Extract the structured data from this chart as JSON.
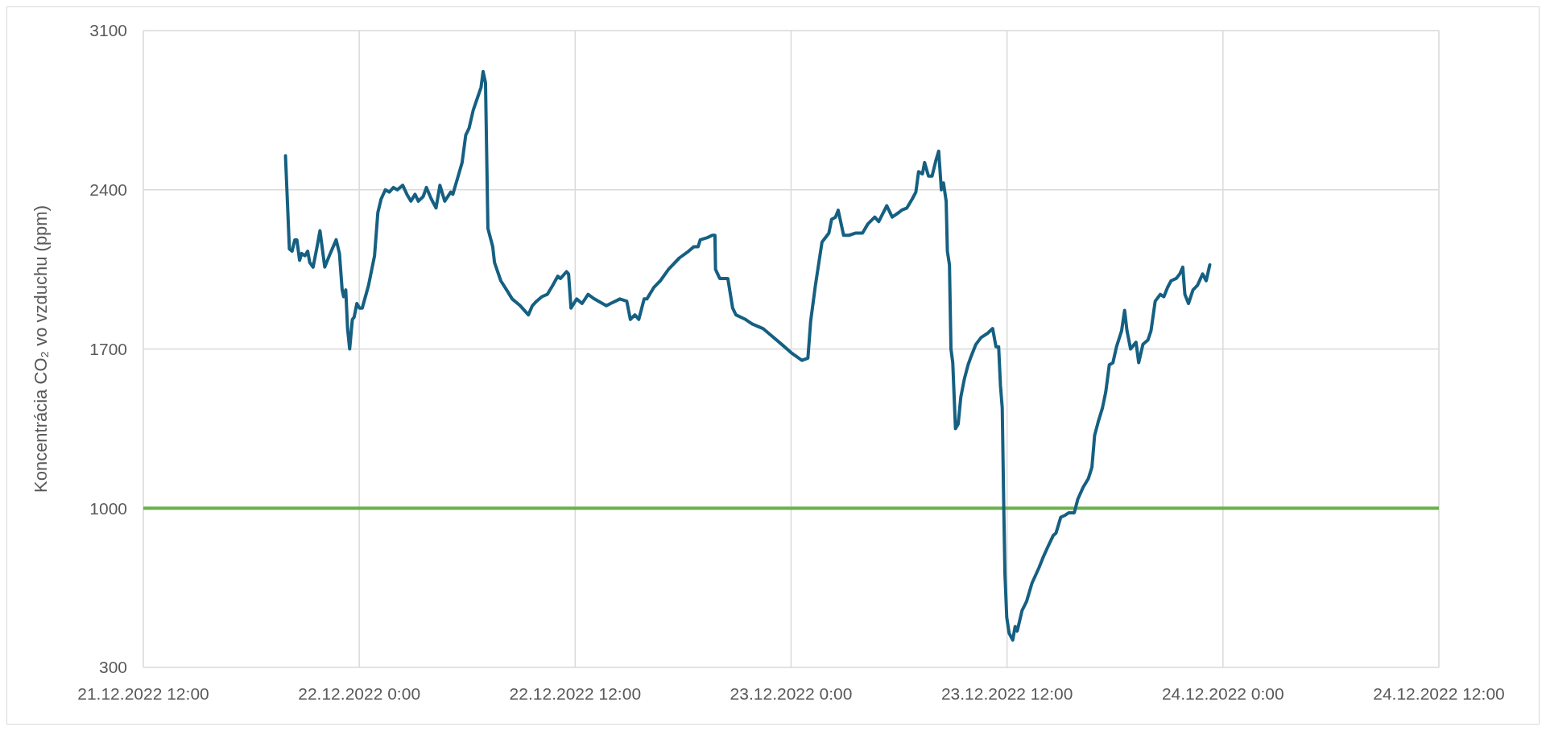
{
  "chart_data": {
    "type": "line",
    "ylabel": "Koncentrácia CO₂ vo vzduchu (ppm)",
    "xlim": [
      "2022-12-21T12:00",
      "2022-12-24T12:00"
    ],
    "xticks": [
      {
        "value": "2022-12-21T12:00",
        "label": "21.12.2022 12:00"
      },
      {
        "value": "2022-12-22T00:00",
        "label": "22.12.2022 0:00"
      },
      {
        "value": "2022-12-22T12:00",
        "label": "22.12.2022 12:00"
      },
      {
        "value": "2022-12-23T00:00",
        "label": "23.12.2022 0:00"
      },
      {
        "value": "2022-12-23T12:00",
        "label": "23.12.2022 12:00"
      },
      {
        "value": "2022-12-24T00:00",
        "label": "24.12.2022 0:00"
      },
      {
        "value": "2022-12-24T12:00",
        "label": "24.12.2022 12:00"
      }
    ],
    "ylim": [
      300,
      3100
    ],
    "yticks": [
      300,
      1000,
      1700,
      2400,
      3100
    ],
    "grid": true,
    "line_style": "solid",
    "ref_lines": [
      {
        "axis": "y",
        "value": 1000,
        "color": "#6ab04c"
      }
    ],
    "series": [
      {
        "color": "#156082",
        "x": [
          "2022-12-21T19:54",
          "2022-12-21T20:07",
          "2022-12-21T20:16",
          "2022-12-21T20:25",
          "2022-12-21T20:32",
          "2022-12-21T20:41",
          "2022-12-21T20:48",
          "2022-12-21T20:59",
          "2022-12-21T21:08",
          "2022-12-21T21:15",
          "2022-12-21T21:26",
          "2022-12-21T21:38",
          "2022-12-21T21:49",
          "2022-12-21T21:56",
          "2022-12-21T22:05",
          "2022-12-21T22:20",
          "2022-12-21T22:43",
          "2022-12-21T22:54",
          "2022-12-21T23:03",
          "2022-12-21T23:08",
          "2022-12-21T23:15",
          "2022-12-21T23:21",
          "2022-12-21T23:28",
          "2022-12-21T23:37",
          "2022-12-21T23:43",
          "2022-12-21T23:52",
          "2022-12-22T00:01",
          "2022-12-22T00:10",
          "2022-12-22T00:31",
          "2022-12-22T00:51",
          "2022-12-22T01:02",
          "2022-12-22T01:13",
          "2022-12-22T01:27",
          "2022-12-22T01:40",
          "2022-12-22T01:54",
          "2022-12-22T02:07",
          "2022-12-22T02:25",
          "2022-12-22T02:39",
          "2022-12-22T02:52",
          "2022-12-22T03:06",
          "2022-12-22T03:17",
          "2022-12-22T03:33",
          "2022-12-22T03:44",
          "2022-12-22T04:00",
          "2022-12-22T04:16",
          "2022-12-22T04:29",
          "2022-12-22T04:45",
          "2022-12-22T05:05",
          "2022-12-22T05:12",
          "2022-12-22T05:32",
          "2022-12-22T05:43",
          "2022-12-22T05:55",
          "2022-12-22T06:06",
          "2022-12-22T06:20",
          "2022-12-22T06:33",
          "2022-12-22T06:46",
          "2022-12-22T06:53",
          "2022-12-22T07:01",
          "2022-12-22T07:09",
          "2022-12-22T07:25",
          "2022-12-22T07:31",
          "2022-12-22T07:52",
          "2022-12-22T08:16",
          "2022-12-22T08:30",
          "2022-12-22T08:57",
          "2022-12-22T09:24",
          "2022-12-22T09:37",
          "2022-12-22T09:51",
          "2022-12-22T10:09",
          "2022-12-22T10:27",
          "2022-12-22T10:45",
          "2022-12-22T11:02",
          "2022-12-22T11:11",
          "2022-12-22T11:31",
          "2022-12-22T11:38",
          "2022-12-22T11:46",
          "2022-12-22T12:05",
          "2022-12-22T12:23",
          "2022-12-22T12:43",
          "2022-12-22T13:04",
          "2022-12-22T13:44",
          "2022-12-22T13:58",
          "2022-12-22T14:29",
          "2022-12-22T14:52",
          "2022-12-22T15:04",
          "2022-12-22T15:19",
          "2022-12-22T15:32",
          "2022-12-22T15:50",
          "2022-12-22T15:59",
          "2022-12-22T16:22",
          "2022-12-22T16:44",
          "2022-12-22T17:11",
          "2022-12-22T17:47",
          "2022-12-22T18:18",
          "2022-12-22T18:36",
          "2022-12-22T18:50",
          "2022-12-22T18:57",
          "2022-12-22T19:21",
          "2022-12-22T19:37",
          "2022-12-22T19:46",
          "2022-12-22T19:48",
          "2022-12-22T20:02",
          "2022-12-22T20:29",
          "2022-12-22T20:45",
          "2022-12-22T20:56",
          "2022-12-22T21:28",
          "2022-12-22T21:50",
          "2022-12-22T22:26",
          "2022-12-22T22:53",
          "2022-12-22T23:29",
          "2022-12-23T00:04",
          "2022-12-23T00:36",
          "2022-12-23T00:56",
          "2022-12-23T01:05",
          "2022-12-23T01:21",
          "2022-12-23T01:43",
          "2022-12-23T02:06",
          "2022-12-23T02:15",
          "2022-12-23T02:28",
          "2022-12-23T02:37",
          "2022-12-23T02:55",
          "2022-12-23T03:13",
          "2022-12-23T03:36",
          "2022-12-23T03:58",
          "2022-12-23T04:16",
          "2022-12-23T04:39",
          "2022-12-23T04:52",
          "2022-12-23T05:19",
          "2022-12-23T05:37",
          "2022-12-23T05:59",
          "2022-12-23T06:08",
          "2022-12-23T06:26",
          "2022-12-23T06:44",
          "2022-12-23T06:56",
          "2022-12-23T07:05",
          "2022-12-23T07:18",
          "2022-12-23T07:25",
          "2022-12-23T07:38",
          "2022-12-23T07:50",
          "2022-12-23T08:03",
          "2022-12-23T08:12",
          "2022-12-23T08:21",
          "2022-12-23T08:28",
          "2022-12-23T08:37",
          "2022-12-23T08:41",
          "2022-12-23T08:48",
          "2022-12-23T08:53",
          "2022-12-23T08:59",
          "2022-12-23T09:08",
          "2022-12-23T09:17",
          "2022-12-23T09:26",
          "2022-12-23T09:38",
          "2022-12-23T09:50",
          "2022-12-23T09:58",
          "2022-12-23T10:16",
          "2022-12-23T10:33",
          "2022-12-23T10:56",
          "2022-12-23T11:12",
          "2022-12-23T11:23",
          "2022-12-23T11:32",
          "2022-12-23T11:38",
          "2022-12-23T11:44",
          "2022-12-23T11:49",
          "2022-12-23T11:53",
          "2022-12-23T11:59",
          "2022-12-23T12:07",
          "2022-12-23T12:19",
          "2022-12-23T12:27",
          "2022-12-23T12:34",
          "2022-12-23T12:50",
          "2022-12-23T13:05",
          "2022-12-23T13:23",
          "2022-12-23T13:47",
          "2022-12-23T13:59",
          "2022-12-23T14:16",
          "2022-12-23T14:34",
          "2022-12-23T14:43",
          "2022-12-23T14:59",
          "2022-12-23T15:15",
          "2022-12-23T15:26",
          "2022-12-23T15:44",
          "2022-12-23T15:56",
          "2022-12-23T16:13",
          "2022-12-23T16:31",
          "2022-12-23T16:43",
          "2022-12-23T16:52",
          "2022-12-23T17:04",
          "2022-12-23T17:18",
          "2022-12-23T17:29",
          "2022-12-23T17:41",
          "2022-12-23T17:53",
          "2022-12-23T18:05",
          "2022-12-23T18:22",
          "2022-12-23T18:32",
          "2022-12-23T18:40",
          "2022-12-23T18:52",
          "2022-12-23T19:10",
          "2022-12-23T19:19",
          "2022-12-23T19:33",
          "2022-12-23T19:50",
          "2022-12-23T20:00",
          "2022-12-23T20:14",
          "2022-12-23T20:31",
          "2022-12-23T20:43",
          "2022-12-23T20:55",
          "2022-12-23T21:07",
          "2022-12-23T21:24",
          "2022-12-23T21:36",
          "2022-12-23T21:46",
          "2022-12-23T21:53",
          "2022-12-23T22:05",
          "2022-12-23T22:20",
          "2022-12-23T22:35",
          "2022-12-23T22:52",
          "2022-12-23T23:04",
          "2022-12-23T23:16"
        ],
        "values": [
          2550,
          2140,
          2130,
          2180,
          2180,
          2090,
          2120,
          2110,
          2130,
          2080,
          2060,
          2140,
          2220,
          2150,
          2060,
          2110,
          2180,
          2120,
          1960,
          1930,
          1960,
          1790,
          1700,
          1830,
          1840,
          1900,
          1880,
          1880,
          1980,
          2110,
          2300,
          2360,
          2400,
          2390,
          2410,
          2400,
          2420,
          2380,
          2350,
          2380,
          2350,
          2370,
          2410,
          2360,
          2320,
          2420,
          2350,
          2390,
          2380,
          2470,
          2520,
          2640,
          2670,
          2750,
          2800,
          2850,
          2920,
          2870,
          2230,
          2150,
          2080,
          2000,
          1950,
          1920,
          1890,
          1850,
          1890,
          1910,
          1930,
          1940,
          1980,
          2020,
          2010,
          2040,
          2030,
          1880,
          1920,
          1900,
          1940,
          1920,
          1890,
          1900,
          1920,
          1910,
          1830,
          1850,
          1830,
          1920,
          1920,
          1970,
          2000,
          2050,
          2100,
          2130,
          2150,
          2150,
          2180,
          2190,
          2200,
          2200,
          2050,
          2010,
          2010,
          1880,
          1850,
          1830,
          1810,
          1790,
          1760,
          1720,
          1680,
          1650,
          1660,
          1820,
          1980,
          2170,
          2210,
          2270,
          2280,
          2310,
          2200,
          2200,
          2210,
          2210,
          2250,
          2280,
          2260,
          2330,
          2280,
          2300,
          2310,
          2320,
          2360,
          2390,
          2480,
          2470,
          2520,
          2460,
          2460,
          2530,
          2570,
          2400,
          2430,
          2350,
          2130,
          2070,
          1700,
          1640,
          1350,
          1370,
          1490,
          1570,
          1630,
          1660,
          1720,
          1750,
          1770,
          1790,
          1710,
          1710,
          1540,
          1440,
          1010,
          710,
          520,
          450,
          420,
          480,
          460,
          550,
          590,
          670,
          740,
          780,
          830,
          880,
          890,
          960,
          970,
          980,
          980,
          1040,
          1090,
          1130,
          1180,
          1320,
          1380,
          1440,
          1510,
          1630,
          1640,
          1710,
          1780,
          1870,
          1780,
          1700,
          1730,
          1640,
          1720,
          1740,
          1780,
          1910,
          1940,
          1930,
          1970,
          2000,
          2010,
          2030,
          2060,
          1940,
          1900,
          1960,
          1980,
          2030,
          2000,
          2070
        ]
      }
    ]
  }
}
